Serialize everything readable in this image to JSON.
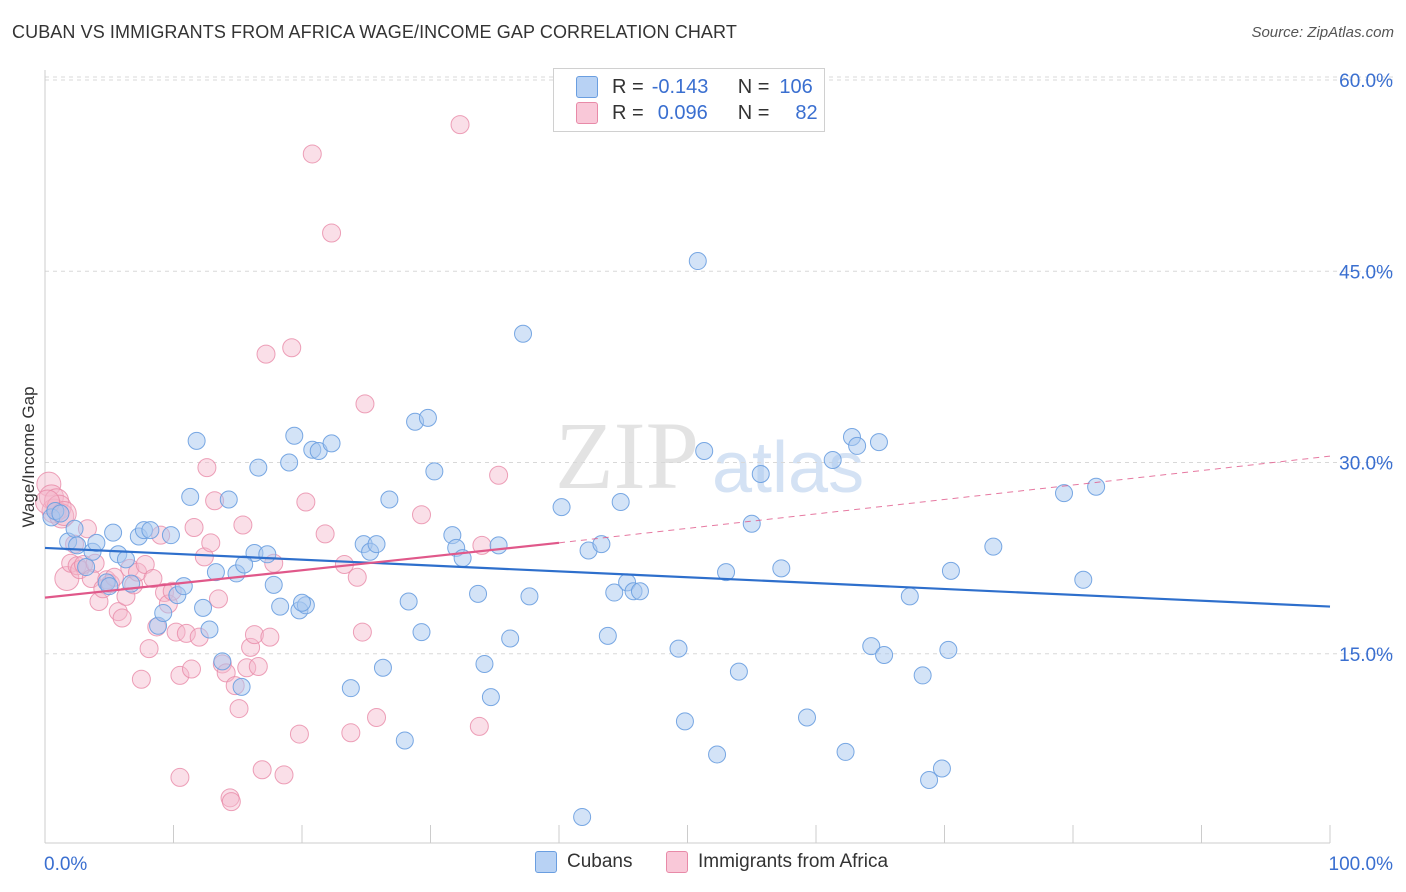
{
  "header": {
    "title": "CUBAN VS IMMIGRANTS FROM AFRICA WAGE/INCOME GAP CORRELATION CHART",
    "source": "Source: ZipAtlas.com"
  },
  "legend": {
    "rows": [
      {
        "r_label": "R =",
        "r_value": "-0.143",
        "n_label": "N =",
        "n_value": "106"
      },
      {
        "r_label": "R =",
        "r_value": "0.096",
        "n_label": "N =",
        "n_value": "82"
      }
    ]
  },
  "bottom_legend": {
    "series1": "Cubans",
    "series2": "Immigrants from Africa"
  },
  "watermark": {
    "zip": "ZIP",
    "atlas": "atlas"
  },
  "colors": {
    "cubans_fill": "#a8c8f0",
    "cubans_stroke": "#6a9ee0",
    "cubans_line": "#2e6fcc",
    "africa_fill": "#f5b8cc",
    "africa_stroke": "#e88aa8",
    "africa_line": "#e0588a",
    "axis_text": "#3a6fd0",
    "grid": "#d8d8d8"
  },
  "chart_data": {
    "type": "scatter",
    "title": "CUBAN VS IMMIGRANTS FROM AFRICA WAGE/INCOME GAP CORRELATION CHART",
    "xlabel": "",
    "ylabel": "Wage/Income Gap",
    "xlim": [
      0,
      100
    ],
    "ylim": [
      0,
      62
    ],
    "x_tick_labels": [
      "0.0%",
      "100.0%"
    ],
    "y_ticks": [
      15,
      30,
      45,
      60
    ],
    "y_tick_labels": [
      "15.0%",
      "30.0%",
      "45.0%",
      "60.0%"
    ],
    "grid": "horizontal dashed",
    "legend_position": "top-center",
    "series": [
      {
        "name": "Cubans",
        "trend": {
          "x": [
            0,
            100
          ],
          "y": [
            23.3,
            18.7
          ],
          "style": "solid"
        },
        "points": [
          [
            0.5,
            25.7
          ],
          [
            0.8,
            26.2
          ],
          [
            1.2,
            26.0
          ],
          [
            1.8,
            23.8
          ],
          [
            2.3,
            24.8
          ],
          [
            2.5,
            23.5
          ],
          [
            3.2,
            21.8
          ],
          [
            3.7,
            23.0
          ],
          [
            4.0,
            23.7
          ],
          [
            4.8,
            20.6
          ],
          [
            5.3,
            24.5
          ],
          [
            5.7,
            22.8
          ],
          [
            6.3,
            22.4
          ],
          [
            6.7,
            20.5
          ],
          [
            7.3,
            24.2
          ],
          [
            7.7,
            24.7
          ],
          [
            8.2,
            24.7
          ],
          [
            8.8,
            17.2
          ],
          [
            9.2,
            18.2
          ],
          [
            9.8,
            24.3
          ],
          [
            10.3,
            19.6
          ],
          [
            10.8,
            20.3
          ],
          [
            11.3,
            27.3
          ],
          [
            11.8,
            31.7
          ],
          [
            12.3,
            18.6
          ],
          [
            12.8,
            16.9
          ],
          [
            13.3,
            21.4
          ],
          [
            13.8,
            14.4
          ],
          [
            14.3,
            27.1
          ],
          [
            14.9,
            21.3
          ],
          [
            15.3,
            12.4
          ],
          [
            16.3,
            22.9
          ],
          [
            16.6,
            29.6
          ],
          [
            17.3,
            22.8
          ],
          [
            17.8,
            20.4
          ],
          [
            18.3,
            18.7
          ],
          [
            19.0,
            30.0
          ],
          [
            19.4,
            32.1
          ],
          [
            19.8,
            18.4
          ],
          [
            20.3,
            18.8
          ],
          [
            20.8,
            31.0
          ],
          [
            21.3,
            30.9
          ],
          [
            22.3,
            31.5
          ],
          [
            23.8,
            12.3
          ],
          [
            24.8,
            23.6
          ],
          [
            25.3,
            23.0
          ],
          [
            25.8,
            23.6
          ],
          [
            26.3,
            13.9
          ],
          [
            26.8,
            27.1
          ],
          [
            28.0,
            8.2
          ],
          [
            28.3,
            19.1
          ],
          [
            28.8,
            33.2
          ],
          [
            29.3,
            16.7
          ],
          [
            29.8,
            33.5
          ],
          [
            30.3,
            29.3
          ],
          [
            31.7,
            24.3
          ],
          [
            32.0,
            23.3
          ],
          [
            32.5,
            22.5
          ],
          [
            33.7,
            19.7
          ],
          [
            34.2,
            14.2
          ],
          [
            34.7,
            11.6
          ],
          [
            35.3,
            23.5
          ],
          [
            36.2,
            16.2
          ],
          [
            37.2,
            40.1
          ],
          [
            37.7,
            19.5
          ],
          [
            40.2,
            26.5
          ],
          [
            41.8,
            2.2
          ],
          [
            42.3,
            23.1
          ],
          [
            43.3,
            23.6
          ],
          [
            43.8,
            16.4
          ],
          [
            44.3,
            19.8
          ],
          [
            44.8,
            26.9
          ],
          [
            45.3,
            20.6
          ],
          [
            45.8,
            19.9
          ],
          [
            46.3,
            19.9
          ],
          [
            49.3,
            15.4
          ],
          [
            49.8,
            9.7
          ],
          [
            50.8,
            45.8
          ],
          [
            51.3,
            30.9
          ],
          [
            52.3,
            7.1
          ],
          [
            53.0,
            21.4
          ],
          [
            54.0,
            13.6
          ],
          [
            55.0,
            25.2
          ],
          [
            55.7,
            29.1
          ],
          [
            57.3,
            21.7
          ],
          [
            59.3,
            10.0
          ],
          [
            61.3,
            30.2
          ],
          [
            62.3,
            7.3
          ],
          [
            62.8,
            32.0
          ],
          [
            63.2,
            31.3
          ],
          [
            64.3,
            15.6
          ],
          [
            65.3,
            14.9
          ],
          [
            64.9,
            31.6
          ],
          [
            67.3,
            19.5
          ],
          [
            68.3,
            13.3
          ],
          [
            68.8,
            5.1
          ],
          [
            69.8,
            6.0
          ],
          [
            70.3,
            15.3
          ],
          [
            70.5,
            21.5
          ],
          [
            73.8,
            23.4
          ],
          [
            79.3,
            27.6
          ],
          [
            80.8,
            20.8
          ],
          [
            81.8,
            28.1
          ],
          [
            5.0,
            20.3
          ],
          [
            15.5,
            22.0
          ],
          [
            20.0,
            19.0
          ]
        ]
      },
      {
        "name": "Immigrants from Africa",
        "trend": {
          "x": [
            0,
            40
          ],
          "y": [
            19.4,
            23.7
          ],
          "style": "solid"
        },
        "trend_extension": {
          "x": [
            40,
            100
          ],
          "y": [
            23.7,
            30.5
          ],
          "style": "dashed"
        },
        "points": [
          [
            0.3,
            28.3
          ],
          [
            0.5,
            27.3
          ],
          [
            0.7,
            26.2
          ],
          [
            0.9,
            27.0
          ],
          [
            1.1,
            26.5
          ],
          [
            1.3,
            25.8
          ],
          [
            1.5,
            26.0
          ],
          [
            1.7,
            20.9
          ],
          [
            2.0,
            22.1
          ],
          [
            2.3,
            23.6
          ],
          [
            2.5,
            21.9
          ],
          [
            2.7,
            21.6
          ],
          [
            3.0,
            22.0
          ],
          [
            3.3,
            24.8
          ],
          [
            3.6,
            20.9
          ],
          [
            3.9,
            22.1
          ],
          [
            4.2,
            19.1
          ],
          [
            4.5,
            20.1
          ],
          [
            4.8,
            20.8
          ],
          [
            5.1,
            20.5
          ],
          [
            5.4,
            21.0
          ],
          [
            5.7,
            18.3
          ],
          [
            6.0,
            17.8
          ],
          [
            6.3,
            19.5
          ],
          [
            6.6,
            21.7
          ],
          [
            6.9,
            20.4
          ],
          [
            7.2,
            21.4
          ],
          [
            7.5,
            13.0
          ],
          [
            7.8,
            22.0
          ],
          [
            8.1,
            15.4
          ],
          [
            8.4,
            20.9
          ],
          [
            8.7,
            17.1
          ],
          [
            9.0,
            24.3
          ],
          [
            9.3,
            19.8
          ],
          [
            9.6,
            18.9
          ],
          [
            9.9,
            19.9
          ],
          [
            10.2,
            16.7
          ],
          [
            10.5,
            13.3
          ],
          [
            10.5,
            5.3
          ],
          [
            11.0,
            16.6
          ],
          [
            11.4,
            13.8
          ],
          [
            11.6,
            24.9
          ],
          [
            12.0,
            16.3
          ],
          [
            12.4,
            22.6
          ],
          [
            12.6,
            29.6
          ],
          [
            12.9,
            23.7
          ],
          [
            13.2,
            27.0
          ],
          [
            13.5,
            19.3
          ],
          [
            13.8,
            14.2
          ],
          [
            14.1,
            13.5
          ],
          [
            14.4,
            3.7
          ],
          [
            14.5,
            3.4
          ],
          [
            14.8,
            12.5
          ],
          [
            15.1,
            10.7
          ],
          [
            15.4,
            25.1
          ],
          [
            15.7,
            13.9
          ],
          [
            16.0,
            15.5
          ],
          [
            16.3,
            16.5
          ],
          [
            16.6,
            14.0
          ],
          [
            16.9,
            5.9
          ],
          [
            17.2,
            38.5
          ],
          [
            17.5,
            16.3
          ],
          [
            17.8,
            22.1
          ],
          [
            18.6,
            5.5
          ],
          [
            19.2,
            39.0
          ],
          [
            19.8,
            8.7
          ],
          [
            20.3,
            26.9
          ],
          [
            20.8,
            54.2
          ],
          [
            21.8,
            24.4
          ],
          [
            22.3,
            48.0
          ],
          [
            23.3,
            22.0
          ],
          [
            23.8,
            8.8
          ],
          [
            24.3,
            21.0
          ],
          [
            24.7,
            16.7
          ],
          [
            24.9,
            34.6
          ],
          [
            25.8,
            10.0
          ],
          [
            29.3,
            25.9
          ],
          [
            32.3,
            56.5
          ],
          [
            33.8,
            9.3
          ],
          [
            35.3,
            29.0
          ],
          [
            34.0,
            23.5
          ],
          [
            0.2,
            26.9
          ]
        ]
      }
    ]
  }
}
